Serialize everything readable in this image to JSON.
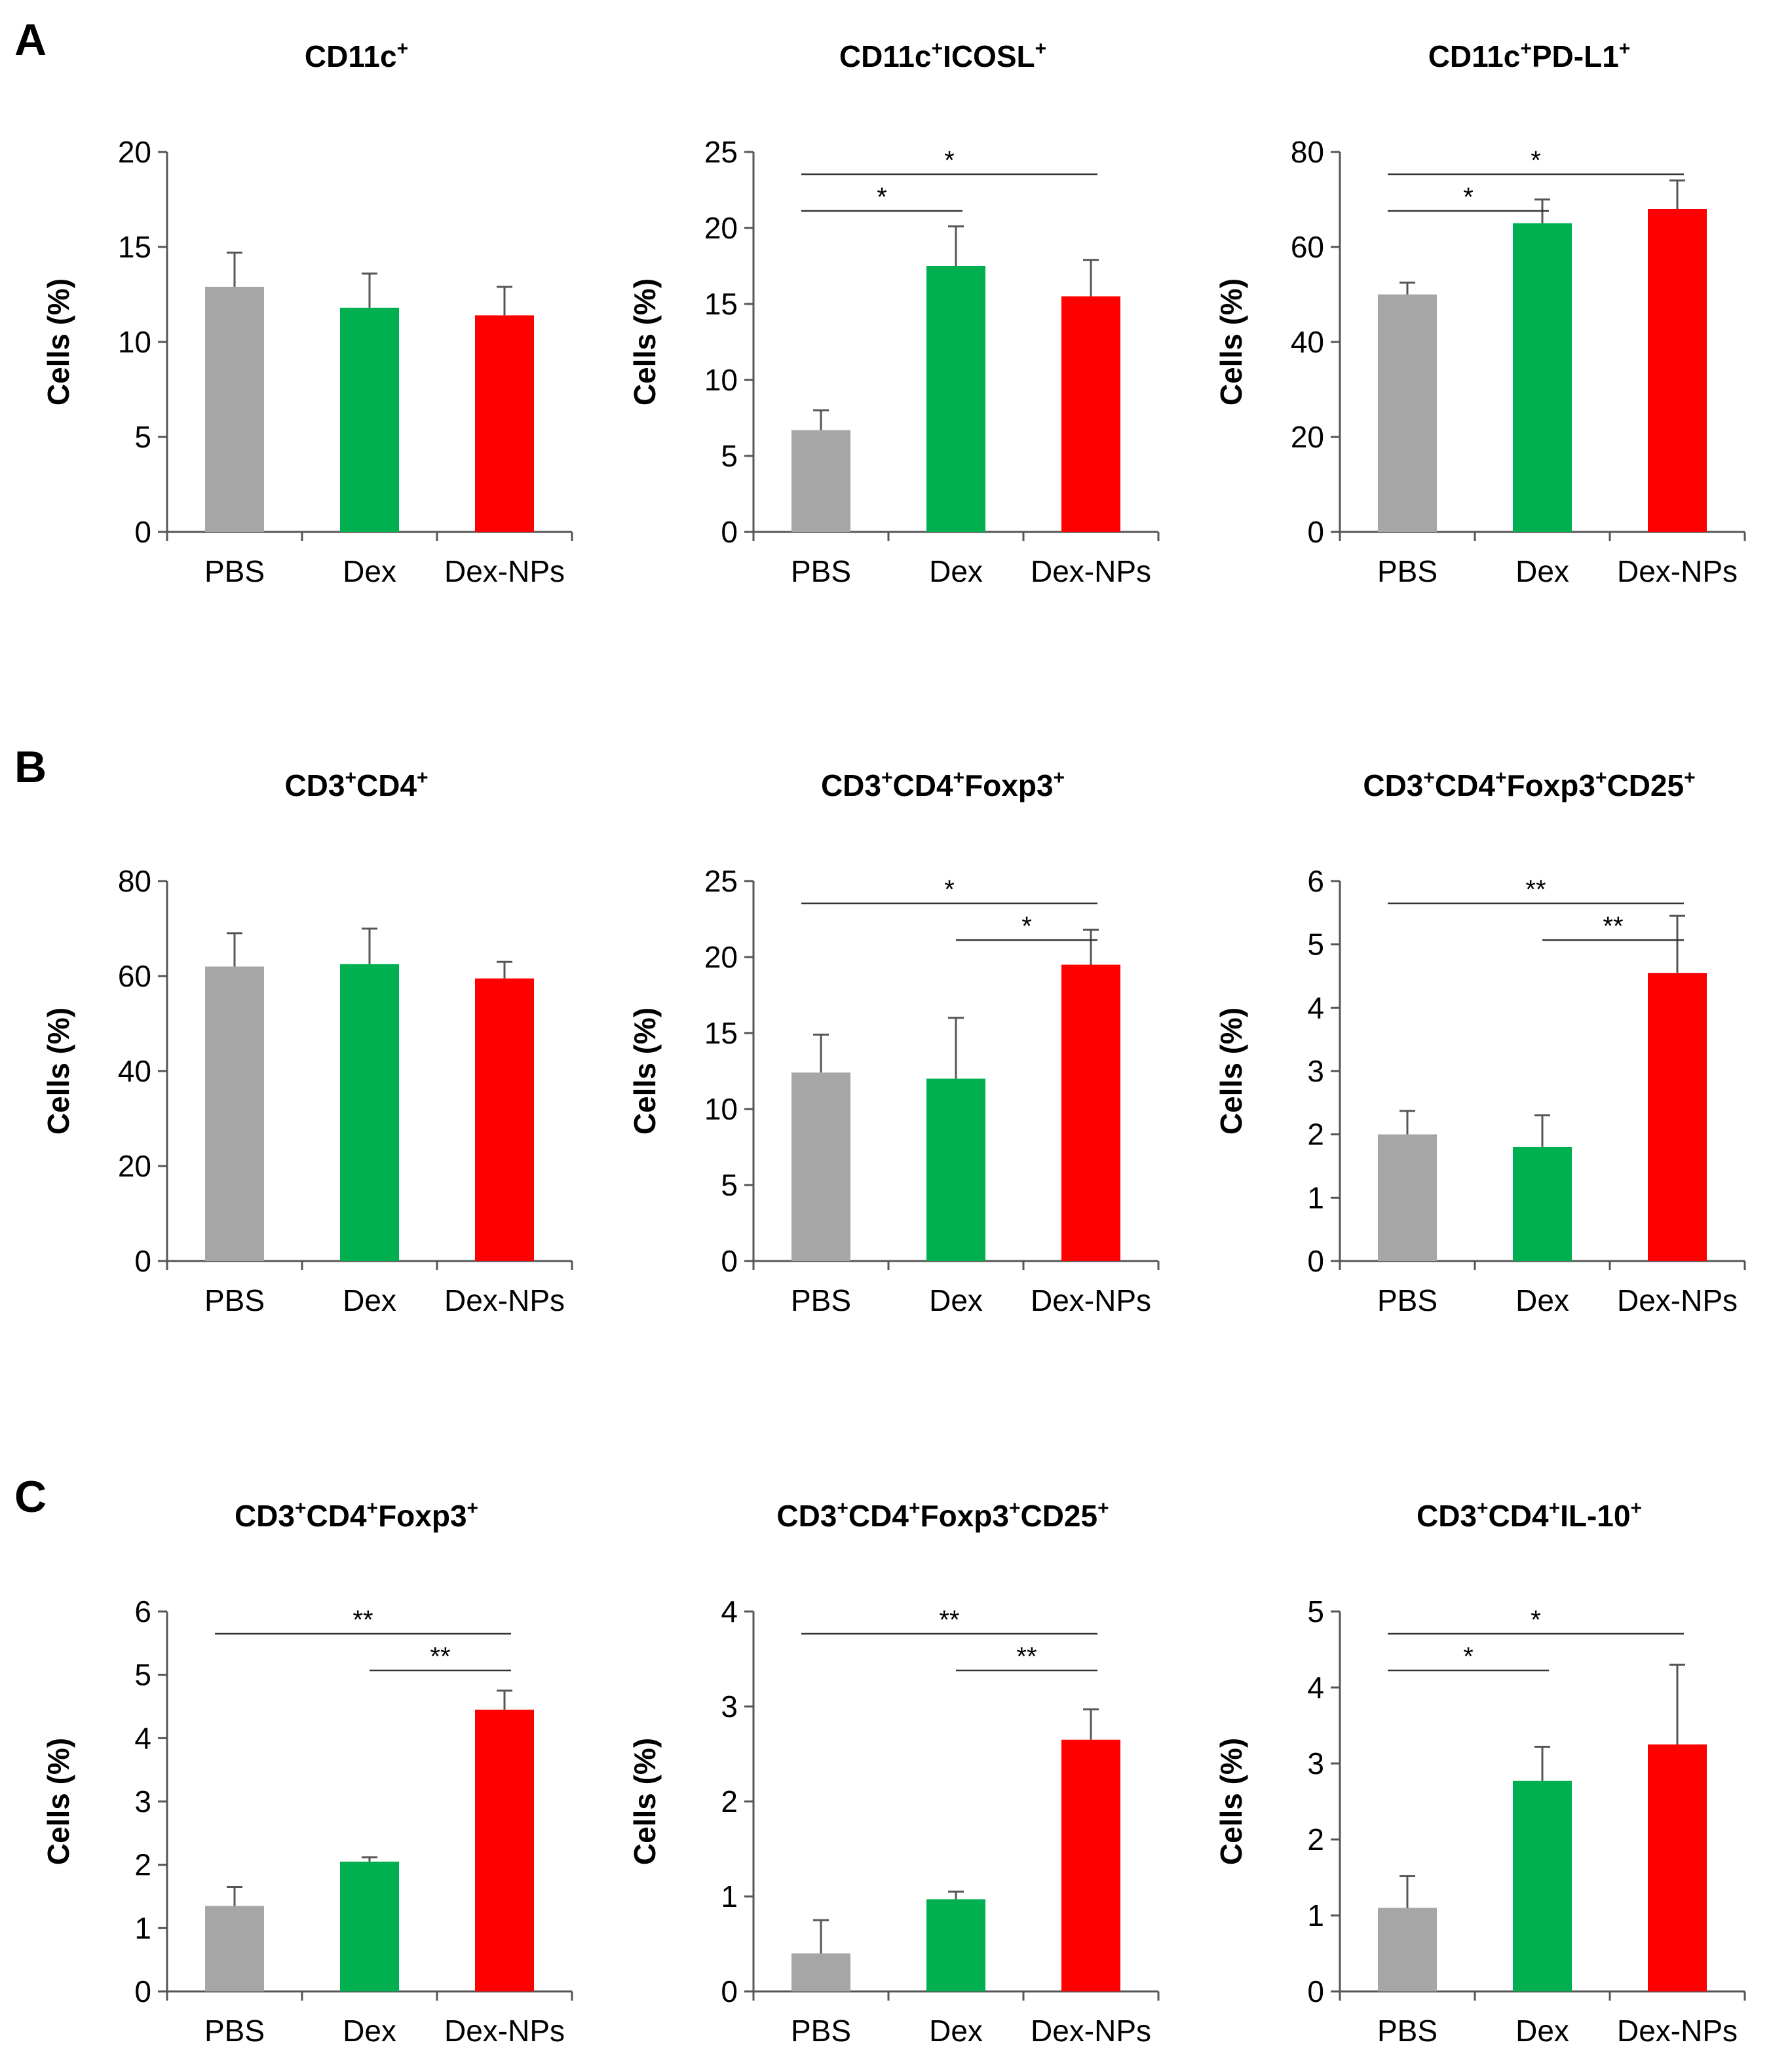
{
  "panel_labels": [
    "A",
    "B",
    "C"
  ],
  "category_labels": [
    "PBS",
    "Dex",
    "Dex-NPs"
  ],
  "ylabel": "Cells (%)",
  "colors": {
    "PBS": "#a6a6a6",
    "Dex": "#00b050",
    "Dex-NPs": "#ff0000"
  },
  "chart_data": [
    {
      "type": "bar",
      "panel": "A",
      "title": "CD11c",
      "title_sup": [
        "+"
      ],
      "title_parts": [
        "CD11c"
      ],
      "categories": [
        "PBS",
        "Dex",
        "Dex-NPs"
      ],
      "values": [
        12.9,
        11.8,
        11.4
      ],
      "errors": [
        1.8,
        1.8,
        1.5
      ],
      "ylim": [
        0,
        20
      ],
      "yticks": [
        0,
        5,
        10,
        15,
        20
      ],
      "ylabel": "Cells (%)",
      "significance": []
    },
    {
      "type": "bar",
      "panel": "A",
      "title": "CD11c+ICOSL+",
      "title_parts": [
        "CD11c",
        "ICOSL"
      ],
      "title_sup": [
        "+",
        "+"
      ],
      "categories": [
        "PBS",
        "Dex",
        "Dex-NPs"
      ],
      "values": [
        6.7,
        17.5,
        15.5
      ],
      "errors": [
        1.3,
        2.6,
        2.4
      ],
      "ylim": [
        0,
        25
      ],
      "yticks": [
        0,
        5,
        10,
        15,
        20,
        25
      ],
      "ylabel": "Cells (%)",
      "significance": [
        {
          "from": 0,
          "to": 1,
          "label": "*"
        },
        {
          "from": 0,
          "to": 2,
          "label": "*"
        }
      ]
    },
    {
      "type": "bar",
      "panel": "A",
      "title": "CD11c+PD-L1+",
      "title_parts": [
        "CD11c",
        "PD-L1"
      ],
      "title_sup": [
        "+",
        "+"
      ],
      "categories": [
        "PBS",
        "Dex",
        "Dex-NPs"
      ],
      "values": [
        50,
        65,
        68
      ],
      "errors": [
        2.5,
        5.0,
        6.0
      ],
      "ylim": [
        0,
        80
      ],
      "yticks": [
        0,
        20,
        40,
        60,
        80
      ],
      "ylabel": "Cells (%)",
      "significance": [
        {
          "from": 0,
          "to": 1,
          "label": "*"
        },
        {
          "from": 0,
          "to": 2,
          "label": "*"
        }
      ]
    },
    {
      "type": "bar",
      "panel": "B",
      "title": "CD3+CD4+",
      "title_parts": [
        "CD3",
        "CD4"
      ],
      "title_sup": [
        "+",
        "+"
      ],
      "categories": [
        "PBS",
        "Dex",
        "Dex-NPs"
      ],
      "values": [
        62,
        62.5,
        59.5
      ],
      "errors": [
        7,
        7.5,
        3.5
      ],
      "ylim": [
        0,
        80
      ],
      "yticks": [
        0,
        20,
        40,
        60,
        80
      ],
      "ylabel": "Cells (%)",
      "significance": []
    },
    {
      "type": "bar",
      "panel": "B",
      "title": "CD3+CD4+Foxp3+",
      "title_parts": [
        "CD3",
        "CD4",
        "Foxp3"
      ],
      "title_sup": [
        "+",
        "+",
        "+"
      ],
      "categories": [
        "PBS",
        "Dex",
        "Dex-NPs"
      ],
      "values": [
        12.4,
        12.0,
        19.5
      ],
      "errors": [
        2.5,
        4.0,
        2.3
      ],
      "ylim": [
        0,
        25
      ],
      "yticks": [
        0,
        5,
        10,
        15,
        20,
        25
      ],
      "ylabel": "Cells (%)",
      "significance": [
        {
          "from": 0,
          "to": 2,
          "label": "*"
        },
        {
          "from": 1,
          "to": 2,
          "label": "*"
        }
      ]
    },
    {
      "type": "bar",
      "panel": "B",
      "title": "CD3+CD4+Foxp3+CD25+",
      "title_parts": [
        "CD3",
        "CD4",
        "Foxp3",
        "CD25"
      ],
      "title_sup": [
        "+",
        "+",
        "+",
        "+"
      ],
      "categories": [
        "PBS",
        "Dex",
        "Dex-NPs"
      ],
      "values": [
        2.0,
        1.8,
        4.55
      ],
      "errors": [
        0.37,
        0.5,
        0.9
      ],
      "ylim": [
        0,
        6
      ],
      "yticks": [
        0,
        1,
        2,
        3,
        4,
        5,
        6
      ],
      "ylabel": "Cells (%)",
      "significance": [
        {
          "from": 0,
          "to": 2,
          "label": "**"
        },
        {
          "from": 1,
          "to": 2,
          "label": "**"
        }
      ]
    },
    {
      "type": "bar",
      "panel": "C",
      "title": "CD3+CD4+Foxp3+",
      "title_parts": [
        "CD3",
        "CD4",
        "Foxp3"
      ],
      "title_sup": [
        "+",
        "+",
        "+"
      ],
      "categories": [
        "PBS",
        "Dex",
        "Dex-NPs"
      ],
      "values": [
        1.35,
        2.05,
        4.45
      ],
      "errors": [
        0.3,
        0.07,
        0.3
      ],
      "ylim": [
        0,
        6
      ],
      "yticks": [
        0,
        1,
        2,
        3,
        4,
        5,
        6
      ],
      "ylabel": "Cells (%)",
      "significance": [
        {
          "from": 0,
          "to": 2,
          "label": "**"
        },
        {
          "from": 1,
          "to": 2,
          "label": "**"
        }
      ]
    },
    {
      "type": "bar",
      "panel": "C",
      "title": "CD3+CD4+Foxp3+CD25+",
      "title_parts": [
        "CD3",
        "CD4",
        "Foxp3",
        "CD25"
      ],
      "title_sup": [
        "+",
        "+",
        "+",
        "+"
      ],
      "categories": [
        "PBS",
        "Dex",
        "Dex-NPs"
      ],
      "values": [
        0.4,
        0.97,
        2.65
      ],
      "errors": [
        0.35,
        0.08,
        0.32
      ],
      "ylim": [
        0,
        4
      ],
      "yticks": [
        0,
        1,
        2,
        3,
        4
      ],
      "ylabel": "Cells (%)",
      "significance": [
        {
          "from": 0,
          "to": 2,
          "label": "**"
        },
        {
          "from": 1,
          "to": 2,
          "label": "**"
        }
      ]
    },
    {
      "type": "bar",
      "panel": "C",
      "title": "CD3+CD4+IL-10+",
      "title_parts": [
        "CD3",
        "CD4",
        "IL-10"
      ],
      "title_sup": [
        "+",
        "+",
        "+"
      ],
      "categories": [
        "PBS",
        "Dex",
        "Dex-NPs"
      ],
      "values": [
        1.1,
        2.77,
        3.25
      ],
      "errors": [
        0.42,
        0.45,
        1.05
      ],
      "ylim": [
        0,
        5
      ],
      "yticks": [
        0,
        1,
        2,
        3,
        4,
        5
      ],
      "ylabel": "Cells (%)",
      "significance": [
        {
          "from": 0,
          "to": 1,
          "label": "*"
        },
        {
          "from": 0,
          "to": 2,
          "label": "*"
        }
      ]
    }
  ]
}
